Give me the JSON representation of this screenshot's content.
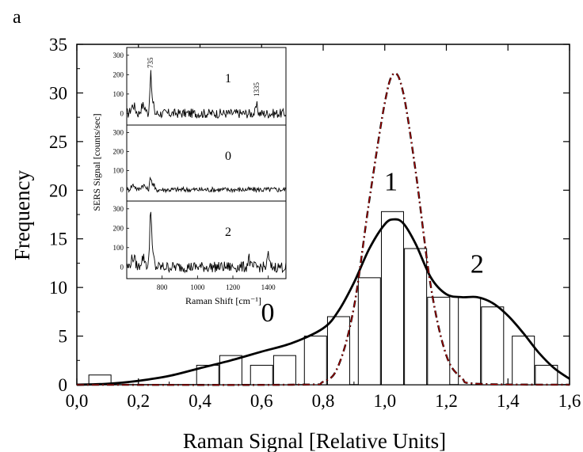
{
  "panel_label": "a",
  "chart_data": [
    {
      "type": "bar",
      "xlabel": "Raman Signal [Relative Units]",
      "ylabel": "Frequency",
      "xlim": [
        0.0,
        1.6
      ],
      "ylim": [
        0,
        35
      ],
      "x_ticks": [
        "0,0",
        "0,2",
        "0,4",
        "0,6",
        "0,8",
        "1,0",
        "1,2",
        "1,4",
        "1,6"
      ],
      "y_ticks": [
        "0",
        "5",
        "10",
        "15",
        "20",
        "25",
        "30",
        "35"
      ],
      "bin_width": 0.1,
      "bins": [
        {
          "center": 0.075,
          "value": 1
        },
        {
          "center": 0.425,
          "value": 2
        },
        {
          "center": 0.5,
          "value": 3
        },
        {
          "center": 0.6,
          "value": 2
        },
        {
          "center": 0.675,
          "value": 3
        },
        {
          "center": 0.775,
          "value": 5
        },
        {
          "center": 0.85,
          "value": 7
        },
        {
          "center": 0.95,
          "value": 11
        },
        {
          "center": 1.025,
          "value": 17.8
        },
        {
          "center": 1.1,
          "value": 14
        },
        {
          "center": 1.175,
          "value": 9
        },
        {
          "center": 1.275,
          "value": 9
        },
        {
          "center": 1.35,
          "value": 8
        },
        {
          "center": 1.45,
          "value": 5
        },
        {
          "center": 1.525,
          "value": 2
        }
      ],
      "series": [
        {
          "style": "solid",
          "color": "#000000",
          "x": [
            0.0,
            0.1,
            0.2,
            0.3,
            0.4,
            0.5,
            0.6,
            0.7,
            0.8,
            0.85,
            0.9,
            0.95,
            1.0,
            1.03,
            1.06,
            1.1,
            1.15,
            1.2,
            1.25,
            1.3,
            1.35,
            1.4,
            1.45,
            1.5,
            1.55,
            1.6
          ],
          "y": [
            0.0,
            0.1,
            0.4,
            0.9,
            1.7,
            2.5,
            3.4,
            4.3,
            5.8,
            7.6,
            10.5,
            14.0,
            16.5,
            17.0,
            16.6,
            14.5,
            11.0,
            9.3,
            9.0,
            9.0,
            8.4,
            7.1,
            5.3,
            3.3,
            1.7,
            0.6
          ]
        },
        {
          "style": "dash-dot",
          "color": "#c00000",
          "x": [
            0.0,
            0.7,
            0.8,
            0.85,
            0.9,
            0.95,
            1.0,
            1.03,
            1.06,
            1.1,
            1.15,
            1.2,
            1.25,
            1.3,
            1.6
          ],
          "y": [
            0.0,
            0.0,
            0.3,
            2.0,
            8.0,
            19.0,
            29.0,
            32.0,
            30.0,
            22.0,
            10.0,
            3.0,
            0.7,
            0.1,
            0.0
          ]
        }
      ],
      "annotations": [
        {
          "text": "0",
          "x": 0.62,
          "y": 6.5
        },
        {
          "text": "1",
          "x": 1.02,
          "y": 20.0
        },
        {
          "text": "2",
          "x": 1.3,
          "y": 11.5
        }
      ]
    },
    {
      "type": "line",
      "xlabel": "Raman Shift [cm⁻¹]",
      "ylabel": "SERS Signal [counts/sec]",
      "xlim": [
        600,
        1500
      ],
      "x_ticks": [
        "800",
        "1000",
        "1200",
        "1400"
      ],
      "y_ticks": [
        "0",
        "100",
        "200",
        "300"
      ],
      "ylim": [
        -60,
        340
      ],
      "panels": [
        {
          "label": "1",
          "peak_labels": [
            {
              "text": "735",
              "x": 735
            },
            {
              "text": "1335",
              "x": 1335
            }
          ],
          "peaks": [
            {
              "x": 735,
              "y": 180
            },
            {
              "x": 1335,
              "y": 40
            }
          ],
          "noise": 35
        },
        {
          "label": "0",
          "peak_labels": [],
          "peaks": [
            {
              "x": 735,
              "y": 55
            }
          ],
          "noise": 20
        },
        {
          "label": "2",
          "peak_labels": [],
          "peaks": [
            {
              "x": 735,
              "y": 290
            },
            {
              "x": 1290,
              "y": 55
            },
            {
              "x": 1400,
              "y": 65
            }
          ],
          "noise": 40
        }
      ]
    }
  ]
}
